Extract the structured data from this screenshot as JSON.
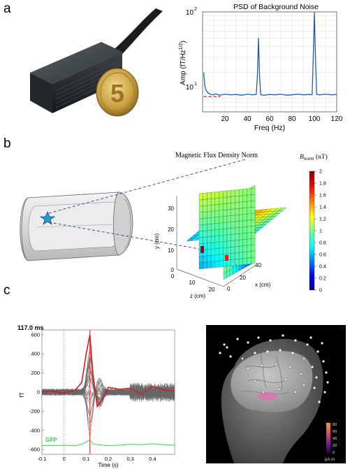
{
  "panels": {
    "a": {
      "letter": "a",
      "photo": {
        "coin_numeral": "5"
      },
      "psd": {
        "title": "PSD of Background Noise",
        "xlabel": "Freq (Hz)",
        "ylabel_main": "Amp (fT/Hz",
        "ylabel_sup": "1/2",
        "ylabel_close": ")",
        "xticks": [
          "20",
          "40",
          "60",
          "80",
          "100",
          "120"
        ],
        "ytick_major_base": "10",
        "ytick_top_exp": "2",
        "ytick_bottom_exp": "1",
        "line_color": "#1f5fa8",
        "ref_color": "#e0201a"
      }
    },
    "b": {
      "letter": "b",
      "field": {
        "title": "Magnetic Flux Density Norm",
        "colorbar_label_B": "B",
        "colorbar_label_sub": "norm",
        "colorbar_label_unit": " (nT)",
        "colorbar_ticks": [
          "2",
          "1.8",
          "1.6",
          "1.4",
          "1.2",
          "1",
          "0.8",
          "0.6",
          "0.4",
          "0.2",
          "0"
        ],
        "y_label": "y (cm)",
        "x_label": "x (cm)",
        "z_label": "z (cm)",
        "y_ticks": [
          "30",
          "20",
          "10",
          "0"
        ],
        "x_ticks": [
          "0",
          "20",
          "40"
        ],
        "z_ticks": [
          "0",
          "10",
          "20"
        ]
      }
    },
    "c": {
      "letter": "c",
      "timestamp": "117.0 ms",
      "ylabel": "fT",
      "xlabel": "Time (s)",
      "yticks": [
        "600",
        "400",
        "200",
        "0",
        "-200",
        "-400",
        "-600"
      ],
      "xticks": [
        "-0.1",
        "0",
        "0.1",
        "0.2",
        "0.3",
        "0.4"
      ],
      "gfp_label": "GFP",
      "colorbar_ticks": [
        "80",
        "60",
        "40",
        "20",
        "0"
      ],
      "colorbar_unit": "pA.m",
      "red_color": "#d42020",
      "gfp_color": "#40d040"
    }
  },
  "chart_data": [
    {
      "type": "line",
      "title": "PSD of Background Noise",
      "xlabel": "Freq (Hz)",
      "ylabel": "Amp (fT/Hz^1/2)",
      "xlim": [
        0,
        120
      ],
      "ylim": [
        7,
        100
      ],
      "yscale": "log",
      "grid": true,
      "series": [
        {
          "x": [
            1,
            2,
            3,
            4,
            5,
            7,
            9,
            12,
            15,
            20,
            25,
            30,
            35,
            40,
            45,
            48,
            49,
            50,
            51,
            52,
            55,
            60,
            65,
            70,
            75,
            80,
            85,
            90,
            95,
            98,
            99,
            100,
            101,
            102,
            105,
            110,
            115,
            120
          ],
          "y": [
            20,
            14,
            12.5,
            12,
            11.5,
            11.2,
            11,
            11.3,
            10.9,
            11.2,
            11.0,
            11.1,
            10.9,
            11.2,
            11.0,
            11.1,
            18,
            50,
            18,
            11.0,
            10.9,
            11.1,
            11.0,
            11.2,
            10.9,
            11.0,
            11.2,
            11.0,
            11.1,
            11.0,
            30,
            100,
            30,
            11.1,
            11.0,
            11.2,
            11.0,
            11.1
          ]
        },
        {
          "x": [
            1,
            16
          ],
          "y": [
            10.5,
            10.5
          ]
        }
      ]
    },
    {
      "type": "line",
      "xlabel": "Time (s)",
      "ylabel": "fT",
      "xlim": [
        -0.1,
        0.5
      ],
      "ylim": [
        -650,
        650
      ],
      "series": [
        {
          "x": [
            -0.1,
            -0.05,
            0,
            0.05,
            0.08,
            0.1,
            0.117,
            0.13,
            0.15,
            0.18,
            0.2,
            0.25,
            0.3,
            0.35,
            0.4,
            0.45,
            0.5
          ],
          "y": [
            0,
            10,
            -10,
            20,
            100,
            400,
            600,
            200,
            -150,
            -50,
            50,
            30,
            40,
            -20,
            60,
            20,
            10
          ]
        },
        {
          "x": [
            -0.1,
            -0.05,
            0,
            0.05,
            0.08,
            0.1,
            0.117,
            0.13,
            0.15,
            0.18,
            0.2,
            0.25,
            0.3,
            0.35,
            0.4,
            0.45,
            0.5
          ],
          "y": [
            -560,
            -560,
            -555,
            -560,
            -545,
            -520,
            -500,
            -540,
            -550,
            -555,
            -560,
            -555,
            -545,
            -550,
            -540,
            -550,
            -555
          ]
        }
      ]
    }
  ]
}
